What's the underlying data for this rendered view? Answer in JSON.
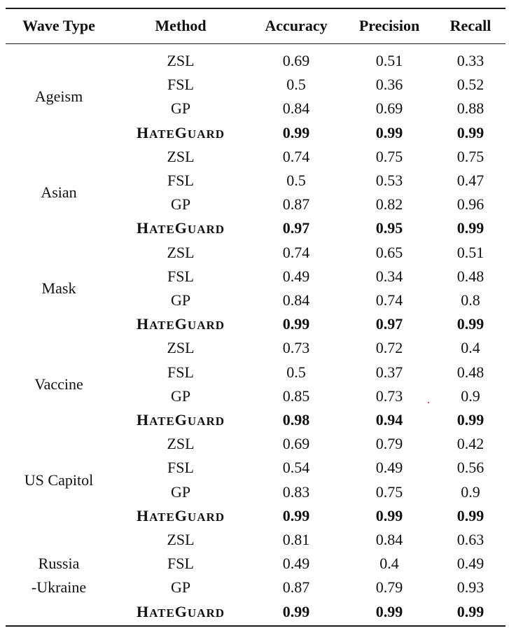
{
  "table": {
    "headers": [
      "Wave Type",
      "Method",
      "Accuracy",
      "Precision",
      "Recall"
    ],
    "groups": [
      {
        "wave_type": "Ageism",
        "rows": [
          {
            "method": "ZSL",
            "accuracy": "0.69",
            "precision": "0.51",
            "recall": "0.33"
          },
          {
            "method": "FSL",
            "accuracy": "0.5",
            "precision": "0.36",
            "recall": "0.52"
          },
          {
            "method": "GP",
            "accuracy": "0.84",
            "precision": "0.69",
            "recall": "0.88"
          },
          {
            "method": "HateGuard",
            "accuracy": "0.99",
            "precision": "0.99",
            "recall": "0.99"
          }
        ]
      },
      {
        "wave_type": "Asian",
        "rows": [
          {
            "method": "ZSL",
            "accuracy": "0.74",
            "precision": "0.75",
            "recall": "0.75"
          },
          {
            "method": "FSL",
            "accuracy": "0.5",
            "precision": "0.53",
            "recall": "0.47"
          },
          {
            "method": "GP",
            "accuracy": "0.87",
            "precision": "0.82",
            "recall": "0.96"
          },
          {
            "method": "HateGuard",
            "accuracy": "0.97",
            "precision": "0.95",
            "recall": "0.99"
          }
        ]
      },
      {
        "wave_type": "Mask",
        "rows": [
          {
            "method": "ZSL",
            "accuracy": "0.74",
            "precision": "0.65",
            "recall": "0.51"
          },
          {
            "method": "FSL",
            "accuracy": "0.49",
            "precision": "0.34",
            "recall": "0.48"
          },
          {
            "method": "GP",
            "accuracy": "0.84",
            "precision": "0.74",
            "recall": "0.8"
          },
          {
            "method": "HateGuard",
            "accuracy": "0.99",
            "precision": "0.97",
            "recall": "0.99"
          }
        ]
      },
      {
        "wave_type": "Vaccine",
        "rows": [
          {
            "method": "ZSL",
            "accuracy": "0.73",
            "precision": "0.72",
            "recall": "0.4"
          },
          {
            "method": "FSL",
            "accuracy": "0.5",
            "precision": "0.37",
            "recall": "0.48"
          },
          {
            "method": "GP",
            "accuracy": "0.85",
            "precision": "0.73",
            "recall": "0.9"
          },
          {
            "method": "HateGuard",
            "accuracy": "0.98",
            "precision": "0.94",
            "recall": "0.99"
          }
        ]
      },
      {
        "wave_type": "US Capitol",
        "rows": [
          {
            "method": "ZSL",
            "accuracy": "0.69",
            "precision": "0.79",
            "recall": "0.42"
          },
          {
            "method": "FSL",
            "accuracy": "0.54",
            "precision": "0.49",
            "recall": "0.56"
          },
          {
            "method": "GP",
            "accuracy": "0.83",
            "precision": "0.75",
            "recall": "0.9"
          },
          {
            "method": "HateGuard",
            "accuracy": "0.99",
            "precision": "0.99",
            "recall": "0.99"
          }
        ]
      },
      {
        "wave_type": "Russia\n-Ukraine",
        "rows": [
          {
            "method": "ZSL",
            "accuracy": "0.81",
            "precision": "0.84",
            "recall": "0.63"
          },
          {
            "method": "FSL",
            "accuracy": "0.49",
            "precision": "0.4",
            "recall": "0.49"
          },
          {
            "method": "GP",
            "accuracy": "0.87",
            "precision": "0.79",
            "recall": "0.93"
          },
          {
            "method": "HateGuard",
            "accuracy": "0.99",
            "precision": "0.99",
            "recall": "0.99"
          }
        ]
      }
    ]
  }
}
